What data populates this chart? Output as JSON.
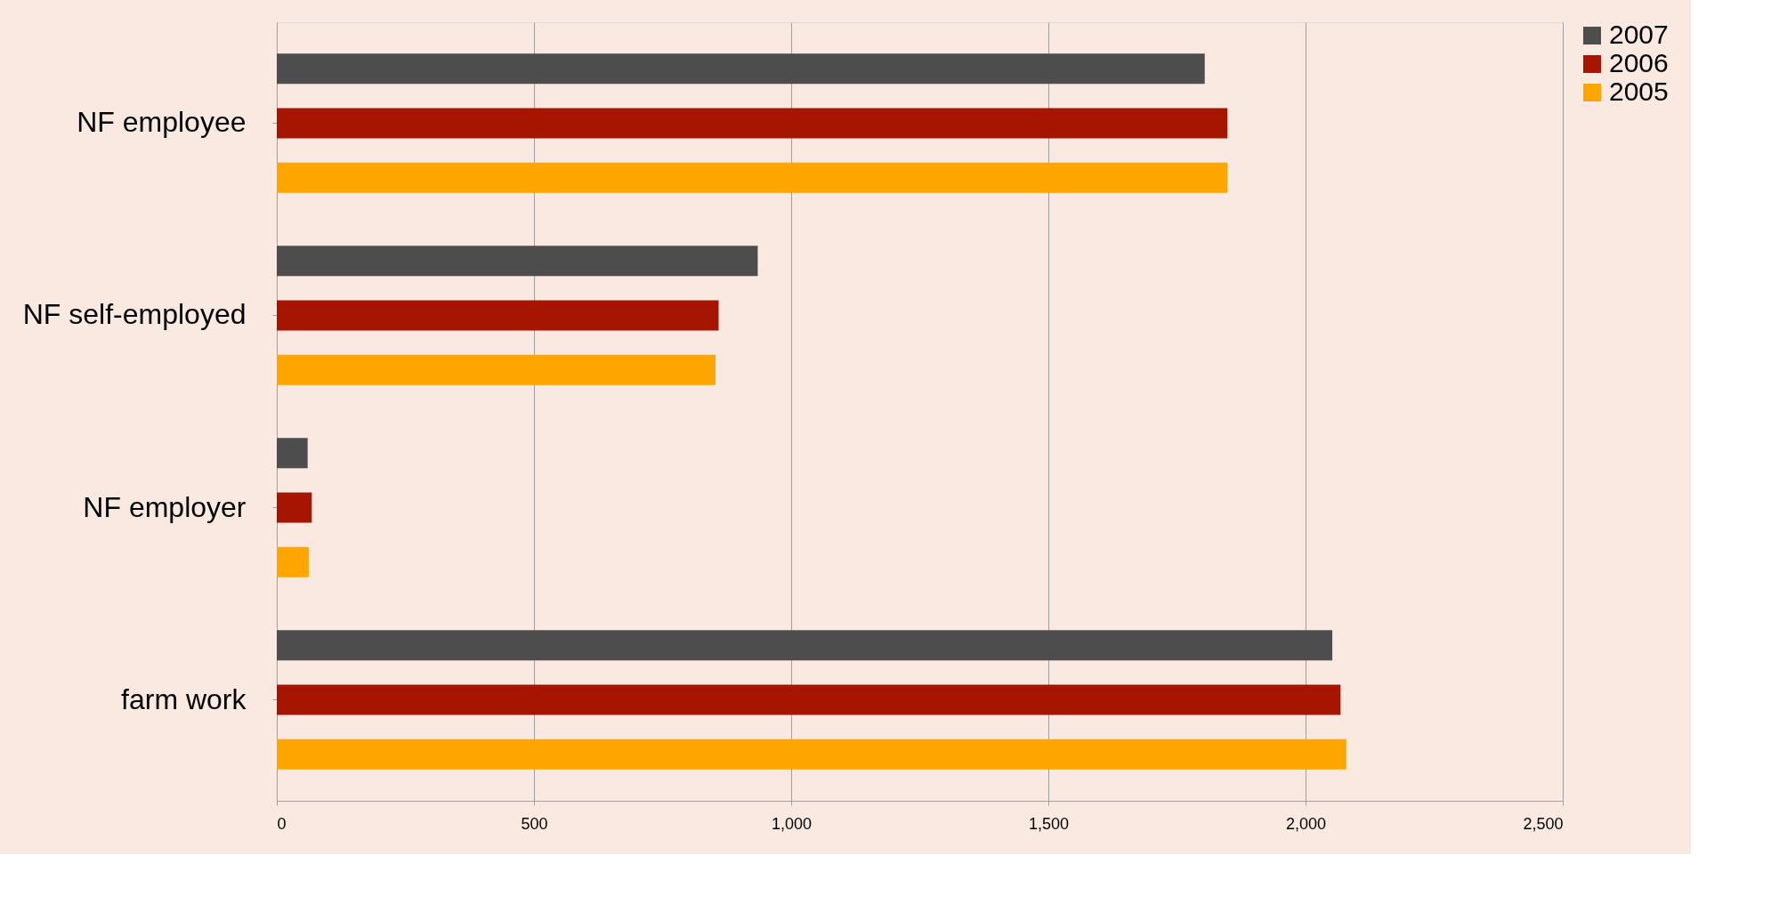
{
  "chart_data": {
    "type": "bar",
    "orientation": "horizontal",
    "categories": [
      "NF employee",
      "NF self-employed",
      "NF employer",
      "farm work"
    ],
    "series": [
      {
        "name": "2007",
        "color": "#4d4d4d",
        "values": [
          1804,
          935,
          60,
          2052
        ]
      },
      {
        "name": "2006",
        "color": "#a61500",
        "values": [
          1848,
          859,
          68,
          2068
        ]
      },
      {
        "name": "2005",
        "color": "#ffa500",
        "values": [
          1848,
          853,
          62,
          2079
        ]
      }
    ],
    "xlim": [
      0,
      2500
    ],
    "xticks": [
      {
        "value": 0,
        "label": "0"
      },
      {
        "value": 500,
        "label": "500"
      },
      {
        "value": 1000,
        "label": "1,000"
      },
      {
        "value": 1500,
        "label": "1,500"
      },
      {
        "value": 2000,
        "label": "2,000"
      },
      {
        "value": 2500,
        "label": "2,500"
      }
    ],
    "grid": "x",
    "legend": "right"
  }
}
